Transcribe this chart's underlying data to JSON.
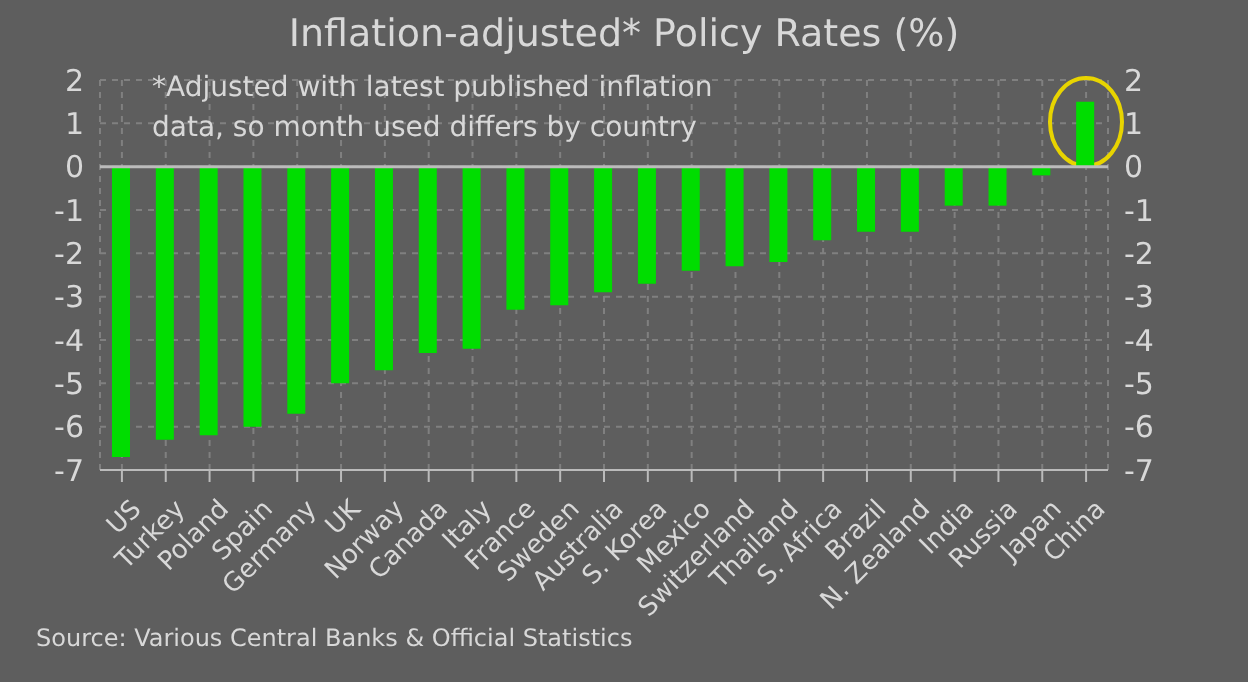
{
  "chart_data": {
    "type": "bar",
    "title": "Inflation-adjusted* Policy Rates (%)",
    "categories": [
      "US",
      "Turkey",
      "Poland",
      "Spain",
      "Germany",
      "UK",
      "Norway",
      "Canada",
      "Italy",
      "France",
      "Sweden",
      "Australia",
      "S. Korea",
      "Mexico",
      "Switzerland",
      "Thailand",
      "S. Africa",
      "Brazil",
      "N. Zealand",
      "India",
      "Russia",
      "Japan",
      "China"
    ],
    "values": [
      -6.7,
      -6.3,
      -6.2,
      -6.0,
      -5.7,
      -5.0,
      -4.7,
      -4.3,
      -4.2,
      -3.3,
      -3.2,
      -2.9,
      -2.7,
      -2.4,
      -2.3,
      -2.2,
      -1.7,
      -1.5,
      -1.5,
      -0.9,
      -0.9,
      -0.2,
      1.5
    ],
    "color": "#00dd00",
    "ylim": [
      -7,
      2
    ],
    "yticks": [
      -7,
      -6,
      -5,
      -4,
      -3,
      -2,
      -1,
      0,
      1,
      2
    ],
    "y2lim": [
      -7,
      2
    ],
    "y2ticks": [
      -7,
      -6,
      -5,
      -4,
      -3,
      -2,
      -1,
      0,
      1,
      2
    ],
    "grid": true,
    "ref_lines": [
      {
        "axis": "y",
        "value": 0,
        "color": "#bbbbbb"
      }
    ],
    "annotations": [
      "*Adjusted with latest published inflation data, so month used differs by country",
      "Source:  Various  Central  Banks & Official  Statistics"
    ]
  }
}
